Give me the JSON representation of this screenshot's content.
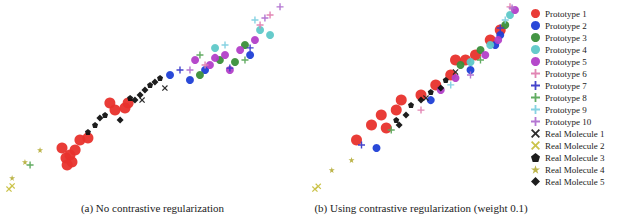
{
  "chart_data": [
    {
      "type": "scatter",
      "title": "(a) No contrastive regularization",
      "xlim": [
        0,
        100
      ],
      "ylim": [
        0,
        100
      ],
      "tick_labels": false,
      "series": [
        {
          "name": "Prototype 1",
          "color": "#e8322c",
          "marker": "circle",
          "values": [
            [
              20,
              22.7
            ],
            [
              21.4,
              17.3
            ],
            [
              22.8,
              18.9
            ],
            [
              23.5,
              15.1
            ],
            [
              21.8,
              13.5
            ],
            [
              24.6,
              21.6
            ],
            [
              26.3,
              27
            ],
            [
              29.1,
              28.1
            ],
            [
              36.8,
              47
            ],
            [
              38.6,
              43.2
            ],
            [
              43.2,
              47
            ],
            [
              42.1,
              44.3
            ]
          ]
        },
        {
          "name": "Prototype 2",
          "color": "#1f3fd6",
          "marker": "circle",
          "values": [
            [
              64.9,
              59.5
            ],
            [
              70.2,
              64.9
            ],
            [
              57.9,
              62.2
            ],
            [
              86,
              73
            ]
          ]
        },
        {
          "name": "Prototype 3",
          "color": "#3a8f3a",
          "marker": "circle",
          "values": [
            [
              68.4,
              62.2
            ],
            [
              75.4,
              70.3
            ],
            [
              84.2,
              78.4
            ],
            [
              80.7,
              69.2
            ]
          ]
        },
        {
          "name": "Prototype 4",
          "color": "#5ec8c8",
          "marker": "circle",
          "values": [
            [
              89.5,
              86.5
            ],
            [
              73.7,
              76.8
            ],
            [
              93,
              83.8
            ]
          ]
        },
        {
          "name": "Prototype 5",
          "color": "#b23fc8",
          "marker": "circle",
          "values": [
            [
              66.7,
              70.3
            ],
            [
              71.9,
              67.6
            ],
            [
              77.2,
              73
            ],
            [
              82.5,
              75.7
            ],
            [
              78.9,
              64.9
            ],
            [
              87.7,
              81.1
            ],
            [
              73.7,
              71.4
            ]
          ]
        },
        {
          "name": "Prototype 6",
          "color": "#e07fb0",
          "marker": "plus",
          "values": [
            [
              93,
              94.6
            ],
            [
              89.5,
              89.2
            ],
            [
              70.2,
              67.6
            ]
          ]
        },
        {
          "name": "Prototype 7",
          "color": "#3a3ac8",
          "marker": "plus",
          "values": [
            [
              61.4,
              64.9
            ],
            [
              78.9,
              65.9
            ],
            [
              86,
              76.8
            ]
          ]
        },
        {
          "name": "Prototype 8",
          "color": "#5aa85a",
          "marker": "plus",
          "values": [
            [
              8.8,
              13.5
            ],
            [
              68.4,
              73
            ],
            [
              84.2,
              70.3
            ]
          ]
        },
        {
          "name": "Prototype 9",
          "color": "#7fd0e0",
          "marker": "plus",
          "values": [
            [
              87.7,
              91.9
            ],
            [
              77.2,
              78.4
            ]
          ]
        },
        {
          "name": "Prototype 10",
          "color": "#b070d0",
          "marker": "plus",
          "values": [
            [
              96.5,
              99
            ],
            [
              91.2,
              93
            ],
            [
              64.9,
              64.9
            ]
          ]
        },
        {
          "name": "Real Molecule 1",
          "color": "#222222",
          "marker": "x",
          "values": [
            [
              48.1,
              48.6
            ],
            [
              56.1,
              55.1
            ]
          ]
        },
        {
          "name": "Real Molecule 2",
          "color": "#c8c040",
          "marker": "x",
          "values": [
            [
              1.4,
              0.5
            ],
            [
              2.5,
              2.2
            ]
          ]
        },
        {
          "name": "Real Molecule 3",
          "color": "#111111",
          "marker": "pentagon",
          "values": [
            [
              31.6,
              35.1
            ],
            [
              35.1,
              40.5
            ],
            [
              43.9,
              49.7
            ],
            [
              50.9,
              56.8
            ],
            [
              29.1,
              31.4
            ],
            [
              54.4,
              60.5
            ]
          ]
        },
        {
          "name": "Real Molecule 4",
          "color": "#b8b040",
          "marker": "star",
          "values": [
            [
              2.5,
              6.5
            ],
            [
              7,
              15.1
            ],
            [
              12.3,
              21.6
            ]
          ]
        },
        {
          "name": "Real Molecule 5",
          "color": "#111111",
          "marker": "diamond",
          "values": [
            [
              33.3,
              38.9
            ],
            [
              40.4,
              37.8
            ],
            [
              47.4,
              51.4
            ],
            [
              52.6,
              58.4
            ],
            [
              45.6,
              48.6
            ],
            [
              49.1,
              54.1
            ]
          ]
        }
      ]
    },
    {
      "type": "scatter",
      "title": "(b) Using contrastive regularization (weight 0.1)",
      "xlim": [
        0,
        100
      ],
      "ylim": [
        0,
        100
      ],
      "tick_labels": false,
      "legend": "right",
      "series": [
        {
          "name": "Prototype 1",
          "color": "#e8322c",
          "marker": "circle",
          "values": [
            [
              21.4,
              27
            ],
            [
              28.6,
              35.1
            ],
            [
              33.3,
              40.5
            ],
            [
              40.5,
              43.2
            ],
            [
              42.9,
              48.6
            ],
            [
              52.4,
              51.4
            ],
            [
              59.5,
              56.8
            ],
            [
              66.7,
              62.2
            ],
            [
              69,
              70.3
            ],
            [
              73.8,
              70.3
            ],
            [
              78.6,
              73
            ],
            [
              85.7,
              81.1
            ],
            [
              90.5,
              86.5
            ],
            [
              35.7,
              33.5
            ]
          ]
        },
        {
          "name": "Prototype 2",
          "color": "#1f3fd6",
          "marker": "circle",
          "values": [
            [
              31,
              22.7
            ],
            [
              57.1,
              48.6
            ],
            [
              76.2,
              64.9
            ],
            [
              88.1,
              78.4
            ],
            [
              90.5,
              83.8
            ]
          ]
        },
        {
          "name": "Prototype 3",
          "color": "#3a8f3a",
          "marker": "circle",
          "values": [
            [
              71.4,
              67.6
            ],
            [
              81,
              75.7
            ],
            [
              92.9,
              89.2
            ]
          ]
        },
        {
          "name": "Prototype 4",
          "color": "#5ec8c8",
          "marker": "circle",
          "values": [
            [
              76.2,
              69.2
            ],
            [
              85.7,
              78.4
            ],
            [
              95.2,
              94.6
            ]
          ]
        },
        {
          "name": "Prototype 5",
          "color": "#b23fc8",
          "marker": "circle",
          "values": [
            [
              61.9,
              54.1
            ],
            [
              69,
              60.5
            ],
            [
              83.3,
              73
            ],
            [
              89.5,
              81.1
            ],
            [
              97.6,
              97.3
            ]
          ]
        },
        {
          "name": "Prototype 6",
          "color": "#e07fb0",
          "marker": "plus",
          "values": [
            [
              52.4,
              43.2
            ],
            [
              95.2,
              99
            ]
          ]
        },
        {
          "name": "Prototype 7",
          "color": "#3a3ac8",
          "marker": "plus",
          "values": [
            [
              23.8,
              24.3
            ],
            [
              90.5,
              87.6
            ]
          ]
        },
        {
          "name": "Prototype 8",
          "color": "#5aa85a",
          "marker": "plus",
          "values": [
            [
              38.1,
              32.4
            ],
            [
              81,
              70.3
            ]
          ]
        },
        {
          "name": "Prototype 9",
          "color": "#7fd0e0",
          "marker": "plus",
          "values": [
            [
              66.7,
              56.8
            ],
            [
              92.9,
              91.9
            ]
          ]
        },
        {
          "name": "Prototype 10",
          "color": "#b070d0",
          "marker": "plus",
          "values": [
            [
              76.2,
              62.2
            ],
            [
              96.2,
              98.4
            ]
          ]
        },
        {
          "name": "Real Molecule 1",
          "color": "#222222",
          "marker": "x",
          "values": [
            [
              54.8,
              49.7
            ],
            [
              69,
              63.8
            ]
          ]
        },
        {
          "name": "Real Molecule 2",
          "color": "#c8c040",
          "marker": "x",
          "values": [
            [
              1.4,
              0.5
            ],
            [
              3,
              2
            ]
          ]
        },
        {
          "name": "Real Molecule 3",
          "color": "#111111",
          "marker": "pentagon",
          "values": [
            [
              40.5,
              37.8
            ],
            [
              47.6,
              45.9
            ],
            [
              57.1,
              53
            ],
            [
              64.3,
              59.5
            ]
          ]
        },
        {
          "name": "Real Molecule 4",
          "color": "#b8b040",
          "marker": "star",
          "values": [
            [
              9.5,
              10.8
            ],
            [
              19,
              16.2
            ]
          ]
        },
        {
          "name": "Real Molecule 5",
          "color": "#111111",
          "marker": "diamond",
          "values": [
            [
              45.2,
              40.5
            ],
            [
              52.4,
              48.6
            ],
            [
              61.9,
              55.1
            ],
            [
              41.9,
              35.1
            ]
          ]
        }
      ]
    }
  ]
}
